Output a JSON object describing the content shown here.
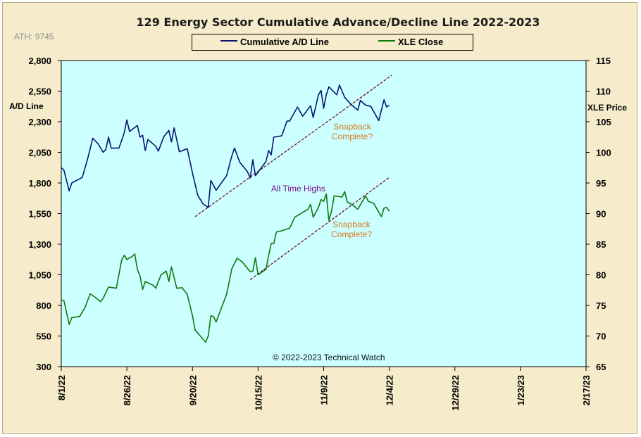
{
  "chart_data": {
    "type": "line",
    "title": "129 Energy Sector Cumulative Advance/Decline Line 2022-2023",
    "ath_label": "ATH: 9745",
    "ylabel_left": "A/D Line",
    "ylabel_right": "XLE Price",
    "ylim_left": [
      300,
      2800
    ],
    "ylim_right": [
      65,
      115
    ],
    "yticks_left": [
      "300",
      "550",
      "800",
      "1,050",
      "1,300",
      "1,550",
      "1,800",
      "2,050",
      "2,300",
      "2,550",
      "2,800"
    ],
    "yticks_right": [
      "65",
      "70",
      "75",
      "80",
      "85",
      "90",
      "95",
      "100",
      "105",
      "110",
      "115"
    ],
    "xticks": [
      "8/1/22",
      "8/26/22",
      "9/20/22",
      "10/15/22",
      "11/9/22",
      "12/4/22",
      "12/29/22",
      "1/23/23",
      "2/17/23"
    ],
    "x_range": [
      "2022-08-01",
      "2023-02-17"
    ],
    "grid": false,
    "legend": "top-center",
    "copyright": "© 2022-2023  Technical Watch",
    "series": [
      {
        "name": "Cumulative A/D Line",
        "axis": "left",
        "color": "#0a1470",
        "points": [
          [
            "2022-08-01",
            1925
          ],
          [
            "2022-08-02",
            1905
          ],
          [
            "2022-08-04",
            1735
          ],
          [
            "2022-08-05",
            1800
          ],
          [
            "2022-08-09",
            1845
          ],
          [
            "2022-08-11",
            1995
          ],
          [
            "2022-08-13",
            2165
          ],
          [
            "2022-08-15",
            2120
          ],
          [
            "2022-08-17",
            2050
          ],
          [
            "2022-08-18",
            2075
          ],
          [
            "2022-08-19",
            2175
          ],
          [
            "2022-08-20",
            2085
          ],
          [
            "2022-08-23",
            2085
          ],
          [
            "2022-08-25",
            2210
          ],
          [
            "2022-08-26",
            2315
          ],
          [
            "2022-08-27",
            2220
          ],
          [
            "2022-08-30",
            2270
          ],
          [
            "2022-08-31",
            2175
          ],
          [
            "2022-09-01",
            2190
          ],
          [
            "2022-09-02",
            2065
          ],
          [
            "2022-09-03",
            2155
          ],
          [
            "2022-09-06",
            2100
          ],
          [
            "2022-09-07",
            2060
          ],
          [
            "2022-09-09",
            2175
          ],
          [
            "2022-09-11",
            2230
          ],
          [
            "2022-09-12",
            2135
          ],
          [
            "2022-09-13",
            2250
          ],
          [
            "2022-09-15",
            2055
          ],
          [
            "2022-09-18",
            2080
          ],
          [
            "2022-09-20",
            1880
          ],
          [
            "2022-09-22",
            1700
          ],
          [
            "2022-09-24",
            1630
          ],
          [
            "2022-09-26",
            1600
          ],
          [
            "2022-09-27",
            1820
          ],
          [
            "2022-09-29",
            1740
          ],
          [
            "2022-10-03",
            1860
          ],
          [
            "2022-10-05",
            2020
          ],
          [
            "2022-10-06",
            2085
          ],
          [
            "2022-10-08",
            1970
          ],
          [
            "2022-10-11",
            1890
          ],
          [
            "2022-10-12",
            1840
          ],
          [
            "2022-10-13",
            1990
          ],
          [
            "2022-10-14",
            1860
          ],
          [
            "2022-10-18",
            1975
          ],
          [
            "2022-10-19",
            2065
          ],
          [
            "2022-10-20",
            2030
          ],
          [
            "2022-10-21",
            2175
          ],
          [
            "2022-10-24",
            2185
          ],
          [
            "2022-10-26",
            2305
          ],
          [
            "2022-10-27",
            2305
          ],
          [
            "2022-10-30",
            2420
          ],
          [
            "2022-11-01",
            2345
          ],
          [
            "2022-11-04",
            2430
          ],
          [
            "2022-11-05",
            2335
          ],
          [
            "2022-11-07",
            2520
          ],
          [
            "2022-11-08",
            2555
          ],
          [
            "2022-11-09",
            2410
          ],
          [
            "2022-11-10",
            2520
          ],
          [
            "2022-11-11",
            2585
          ],
          [
            "2022-11-14",
            2520
          ],
          [
            "2022-11-15",
            2600
          ],
          [
            "2022-11-17",
            2500
          ],
          [
            "2022-11-19",
            2450
          ],
          [
            "2022-11-22",
            2395
          ],
          [
            "2022-11-23",
            2475
          ],
          [
            "2022-11-25",
            2435
          ],
          [
            "2022-11-27",
            2425
          ],
          [
            "2022-11-30",
            2310
          ],
          [
            "2022-12-02",
            2480
          ],
          [
            "2022-12-03",
            2420
          ],
          [
            "2022-12-04",
            2435
          ]
        ],
        "trendline": [
          [
            "2022-09-21",
            1525
          ],
          [
            "2022-12-05",
            2680
          ]
        ]
      },
      {
        "name": "XLE Close",
        "axis": "right",
        "color": "#0b7a0b",
        "points": [
          [
            "2022-08-01",
            75.9
          ],
          [
            "2022-08-02",
            75.8
          ],
          [
            "2022-08-04",
            71.9
          ],
          [
            "2022-08-05",
            73.0
          ],
          [
            "2022-08-08",
            73.2
          ],
          [
            "2022-08-10",
            74.6
          ],
          [
            "2022-08-12",
            76.9
          ],
          [
            "2022-08-14",
            76.3
          ],
          [
            "2022-08-16",
            75.6
          ],
          [
            "2022-08-17",
            76.2
          ],
          [
            "2022-08-19",
            78.0
          ],
          [
            "2022-08-22",
            77.8
          ],
          [
            "2022-08-24",
            82.4
          ],
          [
            "2022-08-25",
            83.2
          ],
          [
            "2022-08-26",
            82.5
          ],
          [
            "2022-08-28",
            83.0
          ],
          [
            "2022-08-29",
            83.4
          ],
          [
            "2022-08-30",
            80.9
          ],
          [
            "2022-08-31",
            79.8
          ],
          [
            "2022-09-01",
            77.6
          ],
          [
            "2022-09-02",
            78.9
          ],
          [
            "2022-09-05",
            78.3
          ],
          [
            "2022-09-06",
            77.8
          ],
          [
            "2022-09-08",
            80.0
          ],
          [
            "2022-09-10",
            80.6
          ],
          [
            "2022-09-11",
            78.9
          ],
          [
            "2022-09-12",
            81.3
          ],
          [
            "2022-09-14",
            77.8
          ],
          [
            "2022-09-16",
            77.9
          ],
          [
            "2022-09-18",
            76.8
          ],
          [
            "2022-09-20",
            73.3
          ],
          [
            "2022-09-21",
            71.0
          ],
          [
            "2022-09-24",
            69.5
          ],
          [
            "2022-09-25",
            69.0
          ],
          [
            "2022-09-26",
            70.0
          ],
          [
            "2022-09-27",
            73.3
          ],
          [
            "2022-09-28",
            73.2
          ],
          [
            "2022-09-29",
            72.3
          ],
          [
            "2022-10-03",
            76.8
          ],
          [
            "2022-10-05",
            81.0
          ],
          [
            "2022-10-07",
            82.7
          ],
          [
            "2022-10-09",
            82.1
          ],
          [
            "2022-10-12",
            80.5
          ],
          [
            "2022-10-13",
            80.6
          ],
          [
            "2022-10-14",
            82.8
          ],
          [
            "2022-10-15",
            80.0
          ],
          [
            "2022-10-18",
            80.9
          ],
          [
            "2022-10-19",
            83.1
          ],
          [
            "2022-10-20",
            85.1
          ],
          [
            "2022-10-21",
            85.1
          ],
          [
            "2022-10-22",
            87.0
          ],
          [
            "2022-10-24",
            87.2
          ],
          [
            "2022-10-27",
            87.6
          ],
          [
            "2022-10-29",
            89.4
          ],
          [
            "2022-11-01",
            90.2
          ],
          [
            "2022-11-03",
            90.7
          ],
          [
            "2022-11-04",
            91.5
          ],
          [
            "2022-11-05",
            89.4
          ],
          [
            "2022-11-07",
            91.0
          ],
          [
            "2022-11-08",
            92.3
          ],
          [
            "2022-11-09",
            92.0
          ],
          [
            "2022-11-10",
            93.2
          ],
          [
            "2022-11-11",
            88.9
          ],
          [
            "2022-11-12",
            90.4
          ],
          [
            "2022-11-13",
            92.9
          ],
          [
            "2022-11-16",
            92.7
          ],
          [
            "2022-11-17",
            93.6
          ],
          [
            "2022-11-18",
            91.9
          ],
          [
            "2022-11-20",
            91.4
          ],
          [
            "2022-11-22",
            90.7
          ],
          [
            "2022-11-25",
            92.9
          ],
          [
            "2022-11-26",
            92.0
          ],
          [
            "2022-11-28",
            91.7
          ],
          [
            "2022-12-01",
            89.5
          ],
          [
            "2022-12-02",
            90.9
          ],
          [
            "2022-12-03",
            91.0
          ],
          [
            "2022-12-04",
            90.4
          ]
        ],
        "trendline": [
          [
            "2022-10-12",
            79.2
          ],
          [
            "2022-12-04",
            95.9
          ]
        ]
      }
    ],
    "annotations": [
      {
        "text": "All Time  Highs",
        "color": "#7a0a8a"
      },
      {
        "line1": "Snapback",
        "line2": "Complete?",
        "color": "#d4781e"
      },
      {
        "line1": "Snapback",
        "line2": "Complete?",
        "color": "#d4781e"
      }
    ]
  }
}
